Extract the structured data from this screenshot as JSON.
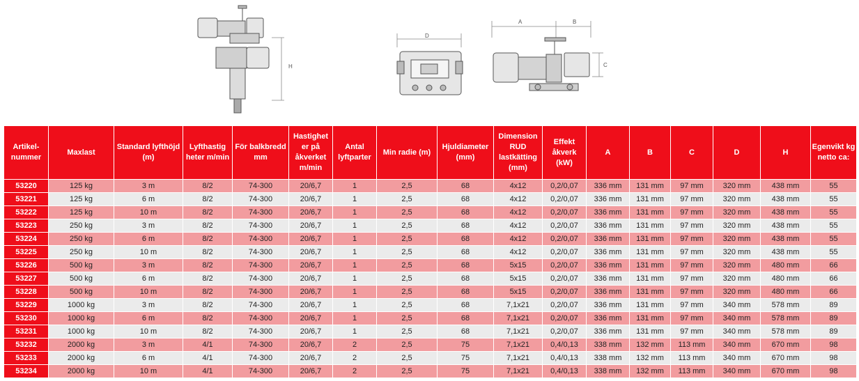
{
  "drawings": {
    "front": {
      "dimension_label": "H"
    },
    "side": {
      "dimension_label": "D"
    },
    "top": {
      "dimension_labels": [
        "A",
        "B",
        "C"
      ]
    }
  },
  "table": {
    "headers": [
      "Artikel-nummer",
      "Maxlast",
      "Standard lyfthöjd (m)",
      "Lyfthastig heter m/min",
      "För balkbredd mm",
      "Hastighet er på åkverket m/min",
      "Antal lyftparter",
      "Min radie (m)",
      "Hjuldiameter (mm)",
      "Dimension RUD lastkätting (mm)",
      "Effekt åkverk (kW)",
      "A",
      "B",
      "C",
      "D",
      "H",
      "Egenvikt kg netto ca:"
    ],
    "rows": [
      [
        "53220",
        "125 kg",
        "3 m",
        "8/2",
        "74-300",
        "20/6,7",
        "1",
        "2,5",
        "68",
        "4x12",
        "0,2/0,07",
        "336 mm",
        "131 mm",
        "97 mm",
        "320 mm",
        "438 mm",
        "55"
      ],
      [
        "53221",
        "125 kg",
        "6 m",
        "8/2",
        "74-300",
        "20/6,7",
        "1",
        "2,5",
        "68",
        "4x12",
        "0,2/0,07",
        "336 mm",
        "131 mm",
        "97 mm",
        "320 mm",
        "438 mm",
        "55"
      ],
      [
        "53222",
        "125 kg",
        "10 m",
        "8/2",
        "74-300",
        "20/6,7",
        "1",
        "2,5",
        "68",
        "4x12",
        "0,2/0,07",
        "336 mm",
        "131 mm",
        "97 mm",
        "320 mm",
        "438 mm",
        "55"
      ],
      [
        "53223",
        "250 kg",
        "3 m",
        "8/2",
        "74-300",
        "20/6,7",
        "1",
        "2,5",
        "68",
        "4x12",
        "0,2/0,07",
        "336 mm",
        "131 mm",
        "97 mm",
        "320 mm",
        "438 mm",
        "55"
      ],
      [
        "53224",
        "250 kg",
        "6 m",
        "8/2",
        "74-300",
        "20/6,7",
        "1",
        "2,5",
        "68",
        "4x12",
        "0,2/0,07",
        "336 mm",
        "131 mm",
        "97 mm",
        "320 mm",
        "438 mm",
        "55"
      ],
      [
        "53225",
        "250 kg",
        "10 m",
        "8/2",
        "74-300",
        "20/6,7",
        "1",
        "2,5",
        "68",
        "4x12",
        "0,2/0,07",
        "336 mm",
        "131 mm",
        "97 mm",
        "320 mm",
        "438 mm",
        "55"
      ],
      [
        "53226",
        "500 kg",
        "3 m",
        "8/2",
        "74-300",
        "20/6,7",
        "1",
        "2,5",
        "68",
        "5x15",
        "0,2/0,07",
        "336 mm",
        "131 mm",
        "97 mm",
        "320 mm",
        "480 mm",
        "66"
      ],
      [
        "53227",
        "500 kg",
        "6 m",
        "8/2",
        "74-300",
        "20/6,7",
        "1",
        "2,5",
        "68",
        "5x15",
        "0,2/0,07",
        "336 mm",
        "131 mm",
        "97 mm",
        "320 mm",
        "480 mm",
        "66"
      ],
      [
        "53228",
        "500 kg",
        "10 m",
        "8/2",
        "74-300",
        "20/6,7",
        "1",
        "2,5",
        "68",
        "5x15",
        "0,2/0,07",
        "336 mm",
        "131 mm",
        "97 mm",
        "320 mm",
        "480 mm",
        "66"
      ],
      [
        "53229",
        "1000 kg",
        "3 m",
        "8/2",
        "74-300",
        "20/6,7",
        "1",
        "2,5",
        "68",
        "7,1x21",
        "0,2/0,07",
        "336 mm",
        "131 mm",
        "97 mm",
        "340 mm",
        "578 mm",
        "89"
      ],
      [
        "53230",
        "1000 kg",
        "6 m",
        "8/2",
        "74-300",
        "20/6,7",
        "1",
        "2,5",
        "68",
        "7,1x21",
        "0,2/0,07",
        "336 mm",
        "131 mm",
        "97 mm",
        "340 mm",
        "578 mm",
        "89"
      ],
      [
        "53231",
        "1000 kg",
        "10 m",
        "8/2",
        "74-300",
        "20/6,7",
        "1",
        "2,5",
        "68",
        "7,1x21",
        "0,2/0,07",
        "336 mm",
        "131 mm",
        "97 mm",
        "340 mm",
        "578 mm",
        "89"
      ],
      [
        "53232",
        "2000 kg",
        "3 m",
        "4/1",
        "74-300",
        "20/6,7",
        "2",
        "2,5",
        "75",
        "7,1x21",
        "0,4/0,13",
        "338 mm",
        "132 mm",
        "113 mm",
        "340 mm",
        "670 mm",
        "98"
      ],
      [
        "53233",
        "2000 kg",
        "6 m",
        "4/1",
        "74-300",
        "20/6,7",
        "2",
        "2,5",
        "75",
        "7,1x21",
        "0,4/0,13",
        "338 mm",
        "132 mm",
        "113 mm",
        "340 mm",
        "670 mm",
        "98"
      ],
      [
        "53234",
        "2000 kg",
        "10 m",
        "4/1",
        "74-300",
        "20/6,7",
        "2",
        "2,5",
        "75",
        "7,1x21",
        "0,4/0,13",
        "338 mm",
        "132 mm",
        "113 mm",
        "340 mm",
        "670 mm",
        "98"
      ]
    ]
  }
}
